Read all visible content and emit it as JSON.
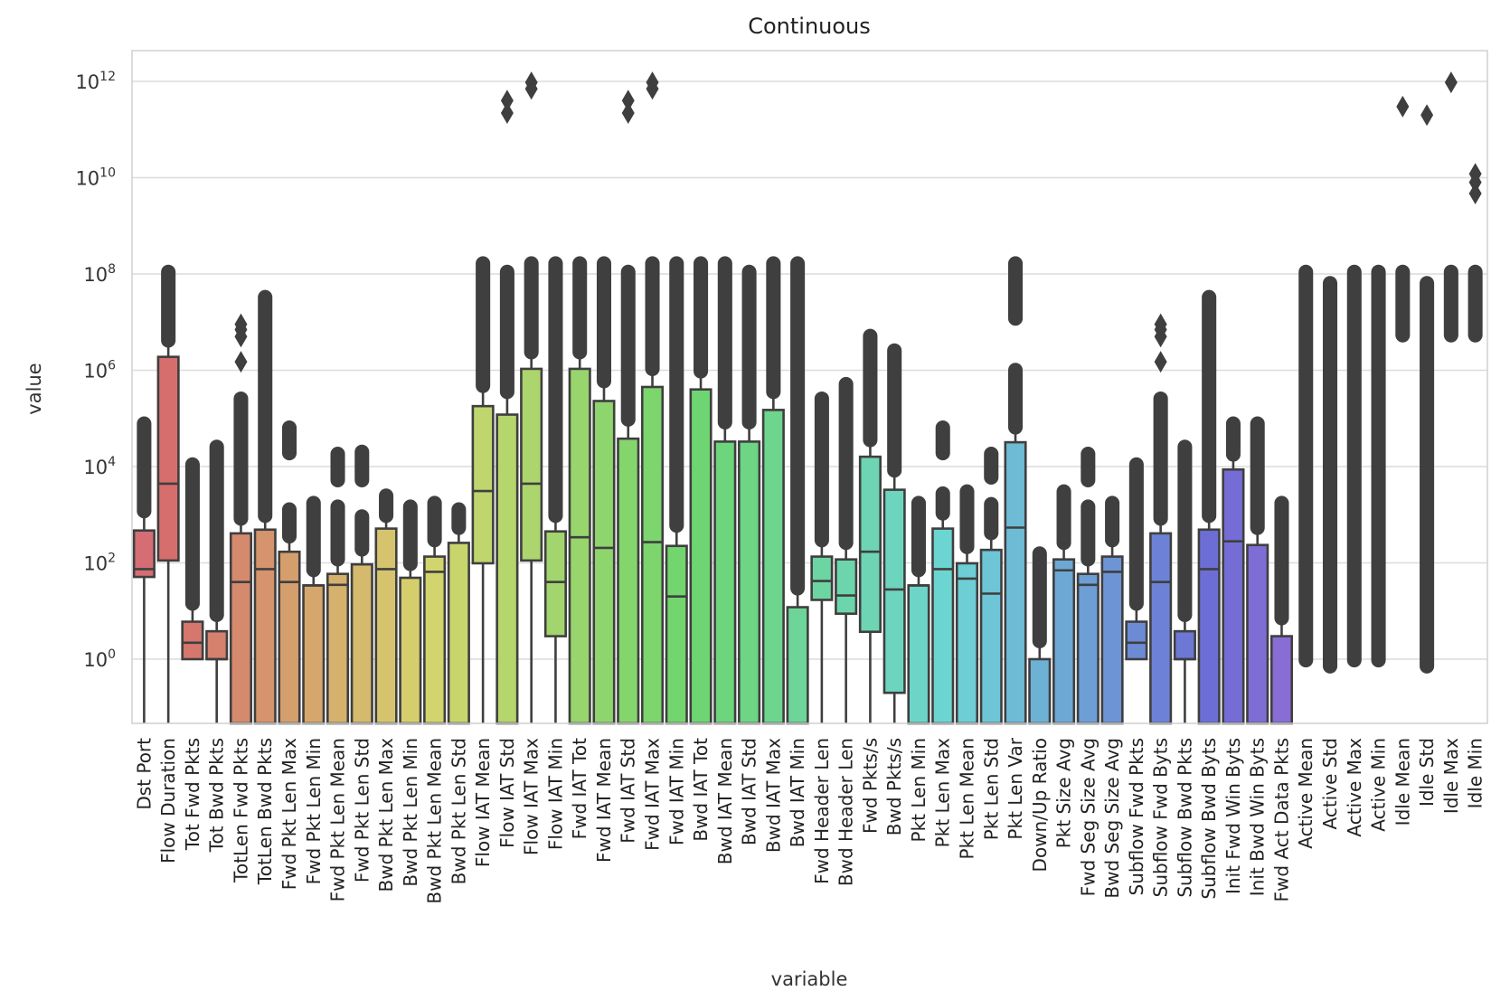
{
  "chart_data": {
    "type": "box",
    "title": "Continuous",
    "xlabel": "variable",
    "ylabel": "value",
    "yscale": "log",
    "ylim": [
      0.047,
      4400000000000.0
    ],
    "yticks": [
      1,
      100,
      10000,
      1000000,
      100000000,
      10000000000,
      1000000000000
    ],
    "ytick_labels": [
      [
        "10",
        "0"
      ],
      [
        "10",
        "2"
      ],
      [
        "10",
        "4"
      ],
      [
        "10",
        "6"
      ],
      [
        "10",
        "8"
      ],
      [
        "10",
        "10"
      ],
      [
        "10",
        "12"
      ]
    ],
    "grid": true,
    "palette": {
      "style": "husl",
      "hue_start": 355,
      "hue_span": 305,
      "edge": "#3f3f3f",
      "grid": "#dcdcdc"
    },
    "box_fields": [
      "whisker_low",
      "q1",
      "median",
      "q3"
    ],
    "note_zero": "0 = value below axis range (clipped at bottom)",
    "series": [
      [
        "Dst Port",
        [
          0,
          51,
          74,
          470
        ],
        [
          [
            1000,
            85000
          ]
        ],
        []
      ],
      [
        "Flow Duration",
        [
          0,
          112,
          4400,
          1900000
        ],
        [
          [
            3500000,
            120000000
          ]
        ],
        []
      ],
      [
        "Tot Fwd Pkts",
        [
          1,
          1,
          2.2,
          6
        ],
        [
          [
            12,
            12000
          ]
        ],
        []
      ],
      [
        "Tot Bwd Pkts",
        [
          0,
          1,
          1,
          3.8
        ],
        [
          [
            7,
            28000
          ]
        ],
        []
      ],
      [
        "TotLen Fwd Pkts",
        [
          0,
          0,
          40,
          410
        ],
        [
          [
            700,
            280000
          ]
        ],
        [
          1500000,
          5000000,
          7000000,
          9000000
        ]
      ],
      [
        "TotLen Bwd Pkts",
        [
          0,
          0,
          74,
          490
        ],
        [
          [
            800,
            36000000
          ]
        ],
        []
      ],
      [
        "Fwd Pkt Len Max",
        [
          0,
          0,
          40,
          170
        ],
        [
          [
            300,
            1400
          ],
          [
            16000,
            70000
          ]
        ],
        []
      ],
      [
        "Fwd Pkt Len Min",
        [
          0,
          0,
          34,
          34
        ],
        [
          [
            60,
            1900
          ]
        ],
        []
      ],
      [
        "Fwd Pkt Len Mean",
        [
          0,
          0,
          35,
          59
        ],
        [
          [
            100,
            1600
          ],
          [
            4400,
            20000
          ]
        ],
        []
      ],
      [
        "Fwd Pkt Len Std",
        [
          0,
          0,
          0,
          93
        ],
        [
          [
            160,
            1000
          ],
          [
            4400,
            22000
          ]
        ],
        []
      ],
      [
        "Bwd Pkt Len Max",
        [
          0,
          0,
          74,
          515
        ],
        [
          [
            800,
            2700
          ]
        ],
        []
      ],
      [
        "Bwd Pkt Len Min",
        [
          0,
          0,
          0,
          49
        ],
        [
          [
            80,
            1600
          ]
        ],
        []
      ],
      [
        "Bwd Pkt Len Mean",
        [
          0,
          0,
          65,
          135
        ],
        [
          [
            250,
            1900
          ]
        ],
        []
      ],
      [
        "Bwd Pkt Len Std",
        [
          0,
          0,
          0,
          260
        ],
        [
          [
            450,
            1400
          ]
        ],
        []
      ],
      [
        "Flow IAT Mean",
        [
          0,
          98,
          3100,
          180000
        ],
        [
          [
            400000,
            180000000
          ]
        ],
        []
      ],
      [
        "Flow IAT Std",
        [
          0,
          0,
          0,
          120000
        ],
        [
          [
            300000,
            120000000
          ]
        ],
        [
          220000000000,
          400000000000
        ]
      ],
      [
        "Flow IAT Max",
        [
          0,
          112,
          4400,
          1070000
        ],
        [
          [
            2000000,
            180000000
          ]
        ],
        [
          700000000000,
          950000000000
        ]
      ],
      [
        "Flow IAT Min",
        [
          0,
          3,
          40,
          450
        ],
        [
          [
            800,
            180000000
          ]
        ],
        []
      ],
      [
        "Fwd IAT Tot",
        [
          0,
          0,
          340,
          1070000
        ],
        [
          [
            2000000,
            180000000
          ]
        ],
        []
      ],
      [
        "Fwd IAT Mean",
        [
          0,
          0,
          205,
          230000
        ],
        [
          [
            500000,
            180000000
          ]
        ],
        []
      ],
      [
        "Fwd IAT Std",
        [
          0,
          0,
          0,
          38000
        ],
        [
          [
            80000,
            120000000
          ]
        ],
        [
          220000000000,
          400000000000
        ]
      ],
      [
        "Fwd IAT Max",
        [
          0,
          0,
          270,
          450000
        ],
        [
          [
            900000,
            180000000
          ]
        ],
        [
          700000000000,
          950000000000
        ]
      ],
      [
        "Fwd IAT Min",
        [
          0,
          0,
          20,
          225
        ],
        [
          [
            500,
            180000000
          ]
        ],
        []
      ],
      [
        "Bwd IAT Tot",
        [
          0,
          0,
          0,
          400000
        ],
        [
          [
            800000,
            180000000
          ]
        ],
        []
      ],
      [
        "Bwd IAT Mean",
        [
          0,
          0,
          0,
          33000
        ],
        [
          [
            70000,
            180000000
          ]
        ],
        []
      ],
      [
        "Bwd IAT Std",
        [
          0,
          0,
          0,
          33000
        ],
        [
          [
            70000,
            120000000
          ]
        ],
        []
      ],
      [
        "Bwd IAT Max",
        [
          0,
          0,
          0,
          150000
        ],
        [
          [
            300000,
            180000000
          ]
        ],
        []
      ],
      [
        "Bwd IAT Min",
        [
          0,
          0,
          0,
          12
        ],
        [
          [
            25,
            180000000
          ]
        ],
        []
      ],
      [
        "Fwd Header Len",
        [
          0,
          17,
          42,
          135
        ],
        [
          [
            250,
            280000
          ]
        ],
        []
      ],
      [
        "Bwd Header Len",
        [
          0,
          8.8,
          21,
          118
        ],
        [
          [
            220,
            560000
          ]
        ],
        []
      ],
      [
        "Fwd Pkts/s",
        [
          0,
          3.7,
          170,
          16000
        ],
        [
          [
            30000,
            5600000
          ]
        ],
        []
      ],
      [
        "Bwd Pkts/s",
        [
          0,
          0.2,
          28,
          3300
        ],
        [
          [
            7000,
            2800000
          ]
        ],
        []
      ],
      [
        "Pkt Len Min",
        [
          0,
          0,
          34,
          34
        ],
        [
          [
            60,
            1900
          ]
        ],
        []
      ],
      [
        "Pkt Len Max",
        [
          0,
          0,
          74,
          515
        ],
        [
          [
            900,
            3000
          ],
          [
            16000,
            70000
          ]
        ],
        []
      ],
      [
        "Pkt Len Mean",
        [
          0,
          0,
          47,
          98
        ],
        [
          [
            180,
            3300
          ]
        ],
        []
      ],
      [
        "Pkt Len Std",
        [
          0,
          0,
          23,
          186
        ],
        [
          [
            350,
            1800
          ],
          [
            5000,
            20000
          ]
        ],
        []
      ],
      [
        "Pkt Len Var",
        [
          0,
          0,
          540,
          32000
        ],
        [
          [
            55000,
            1100000
          ],
          [
            10000000,
            180000000
          ]
        ],
        []
      ],
      [
        "Down/Up Ratio",
        [
          0,
          0,
          0,
          1
        ],
        [
          [
            2,
            170
          ]
        ],
        []
      ],
      [
        "Pkt Size Avg",
        [
          0,
          0,
          70,
          118
        ],
        [
          [
            220,
            3300
          ]
        ],
        []
      ],
      [
        "Fwd Seg Size Avg",
        [
          0,
          0,
          35,
          59
        ],
        [
          [
            100,
            1600
          ],
          [
            4400,
            20000
          ]
        ],
        []
      ],
      [
        "Bwd Seg Size Avg",
        [
          0,
          0,
          65,
          135
        ],
        [
          [
            250,
            1900
          ]
        ],
        []
      ],
      [
        "Subflow Fwd Pkts",
        [
          1,
          1,
          2.2,
          6
        ],
        [
          [
            12,
            12000
          ]
        ],
        []
      ],
      [
        "Subflow Fwd Byts",
        [
          0,
          0,
          40,
          410
        ],
        [
          [
            700,
            280000
          ]
        ],
        [
          1500000,
          5000000,
          7000000,
          9000000
        ]
      ],
      [
        "Subflow Bwd Pkts",
        [
          0,
          1,
          1,
          3.8
        ],
        [
          [
            7,
            28000
          ]
        ],
        []
      ],
      [
        "Subflow Bwd Byts",
        [
          0,
          0,
          74,
          490
        ],
        [
          [
            800,
            36000000
          ]
        ],
        []
      ],
      [
        "Init Fwd Win Byts",
        [
          0,
          0,
          280,
          8700
        ],
        [
          [
            15000,
            85000
          ]
        ],
        []
      ],
      [
        "Init Bwd Win Byts",
        [
          0,
          0,
          0,
          235
        ],
        [
          [
            450,
            85000
          ]
        ],
        []
      ],
      [
        "Fwd Act Data Pkts",
        [
          0,
          0,
          0,
          3
        ],
        [
          [
            6,
            1900
          ]
        ],
        []
      ],
      [
        "Active Mean",
        null,
        [
          [
            0.8,
            120000000
          ]
        ],
        []
      ],
      [
        "Active Std",
        null,
        [
          [
            0.6,
            70000000
          ]
        ],
        []
      ],
      [
        "Active Max",
        null,
        [
          [
            0.8,
            120000000
          ]
        ],
        []
      ],
      [
        "Active Min",
        null,
        [
          [
            0.8,
            120000000
          ]
        ],
        []
      ],
      [
        "Idle Mean",
        null,
        [
          [
            4500000,
            120000000
          ]
        ],
        [
          300000000000
        ]
      ],
      [
        "Idle Std",
        null,
        [
          [
            0.6,
            70000000
          ]
        ],
        [
          200000000000
        ]
      ],
      [
        "Idle Max",
        null,
        [
          [
            4500000,
            120000000
          ]
        ],
        [
          950000000000
        ]
      ],
      [
        "Idle Min",
        null,
        [
          [
            4500000,
            120000000
          ]
        ],
        [
          4700000000,
          8000000000,
          12000000000
        ]
      ]
    ]
  }
}
